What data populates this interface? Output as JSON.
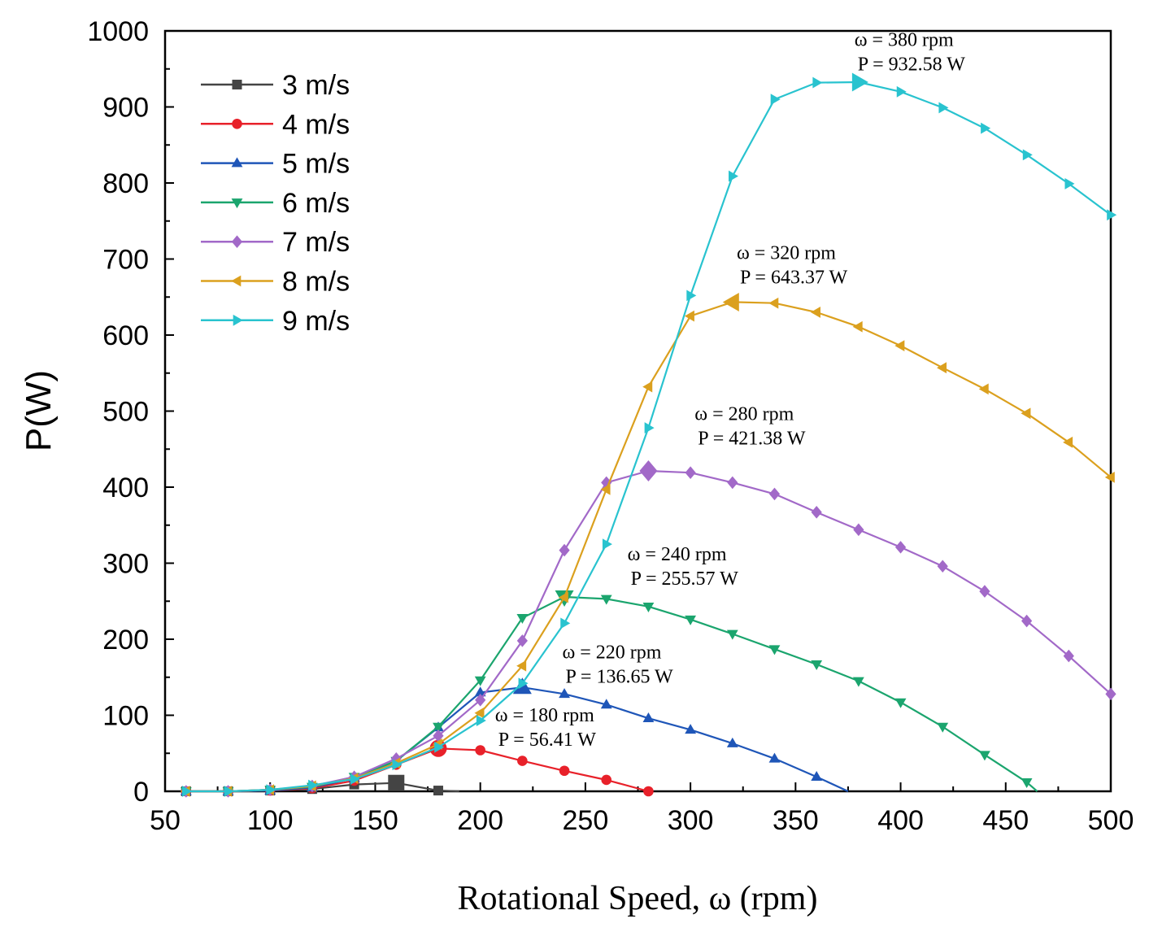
{
  "chart_data": {
    "type": "line",
    "title": "",
    "xlabel": "Rotational Speed, ω (rpm)",
    "ylabel": "P(W)",
    "xlim": [
      50,
      500
    ],
    "ylim": [
      0,
      1000
    ],
    "xticks": [
      50,
      100,
      150,
      200,
      250,
      300,
      350,
      400,
      450,
      500
    ],
    "yticks": [
      0,
      100,
      200,
      300,
      400,
      500,
      600,
      700,
      800,
      900,
      1000
    ],
    "grid": false,
    "legend_position": "top-left",
    "series": [
      {
        "name": "3 m/s",
        "color": "#444444",
        "marker": "square",
        "points": [
          [
            60,
            0
          ],
          [
            80,
            0
          ],
          [
            100,
            1
          ],
          [
            120,
            3
          ],
          [
            140,
            9
          ],
          [
            160,
            11
          ],
          [
            180,
            1
          ],
          [
            190,
            0
          ]
        ],
        "peak": [
          160,
          11
        ]
      },
      {
        "name": "4 m/s",
        "color": "#e8212a",
        "marker": "circle",
        "points": [
          [
            60,
            0
          ],
          [
            80,
            0
          ],
          [
            100,
            1
          ],
          [
            120,
            4
          ],
          [
            140,
            14
          ],
          [
            160,
            35
          ],
          [
            180,
            56.41
          ],
          [
            200,
            54
          ],
          [
            220,
            40
          ],
          [
            240,
            27
          ],
          [
            260,
            15
          ],
          [
            280,
            0
          ]
        ],
        "peak": [
          180,
          56.41
        ]
      },
      {
        "name": "5 m/s",
        "color": "#1f56b8",
        "marker": "triangle-up",
        "points": [
          [
            60,
            0
          ],
          [
            80,
            0
          ],
          [
            100,
            1
          ],
          [
            120,
            5
          ],
          [
            140,
            17
          ],
          [
            160,
            40
          ],
          [
            180,
            84
          ],
          [
            200,
            130
          ],
          [
            220,
            136.65
          ],
          [
            240,
            128
          ],
          [
            260,
            114
          ],
          [
            280,
            96
          ],
          [
            300,
            81
          ],
          [
            320,
            63
          ],
          [
            340,
            43
          ],
          [
            360,
            19
          ],
          [
            375,
            0
          ]
        ],
        "peak": [
          220,
          136.65
        ]
      },
      {
        "name": "6 m/s",
        "color": "#1ba56e",
        "marker": "triangle-down",
        "points": [
          [
            60,
            0
          ],
          [
            80,
            0
          ],
          [
            100,
            2
          ],
          [
            120,
            6
          ],
          [
            140,
            19
          ],
          [
            160,
            40
          ],
          [
            180,
            85
          ],
          [
            200,
            146
          ],
          [
            220,
            228
          ],
          [
            240,
            255.57
          ],
          [
            260,
            253
          ],
          [
            280,
            243
          ],
          [
            300,
            226
          ],
          [
            320,
            207
          ],
          [
            340,
            187
          ],
          [
            360,
            167
          ],
          [
            380,
            145
          ],
          [
            400,
            117
          ],
          [
            420,
            85
          ],
          [
            440,
            48
          ],
          [
            460,
            12
          ],
          [
            465,
            0
          ]
        ],
        "peak": [
          240,
          255.57
        ]
      },
      {
        "name": "7 m/s",
        "color": "#a269c8",
        "marker": "diamond",
        "points": [
          [
            60,
            0
          ],
          [
            80,
            0
          ],
          [
            100,
            2
          ],
          [
            120,
            7
          ],
          [
            140,
            19
          ],
          [
            160,
            43
          ],
          [
            180,
            73
          ],
          [
            200,
            120
          ],
          [
            220,
            198
          ],
          [
            240,
            317
          ],
          [
            260,
            406
          ],
          [
            280,
            421.38
          ],
          [
            300,
            419
          ],
          [
            320,
            406
          ],
          [
            340,
            391
          ],
          [
            360,
            367
          ],
          [
            380,
            344
          ],
          [
            400,
            321
          ],
          [
            420,
            296
          ],
          [
            440,
            263
          ],
          [
            460,
            224
          ],
          [
            480,
            178
          ],
          [
            500,
            128
          ]
        ],
        "peak": [
          280,
          421.38
        ]
      },
      {
        "name": "8 m/s",
        "color": "#dba01e",
        "marker": "triangle-left",
        "points": [
          [
            60,
            0
          ],
          [
            80,
            0
          ],
          [
            100,
            2
          ],
          [
            120,
            7
          ],
          [
            140,
            17
          ],
          [
            160,
            37
          ],
          [
            180,
            62
          ],
          [
            200,
            103
          ],
          [
            220,
            165
          ],
          [
            240,
            255
          ],
          [
            260,
            397
          ],
          [
            280,
            532
          ],
          [
            300,
            625
          ],
          [
            320,
            643.37
          ],
          [
            340,
            642
          ],
          [
            360,
            630
          ],
          [
            380,
            611
          ],
          [
            400,
            586
          ],
          [
            420,
            557
          ],
          [
            440,
            529
          ],
          [
            460,
            497
          ],
          [
            480,
            459
          ],
          [
            500,
            413
          ]
        ],
        "peak": [
          320,
          643.37
        ]
      },
      {
        "name": "9 m/s",
        "color": "#29c3cf",
        "marker": "triangle-right",
        "points": [
          [
            60,
            0
          ],
          [
            80,
            0
          ],
          [
            100,
            2
          ],
          [
            120,
            8
          ],
          [
            140,
            16
          ],
          [
            160,
            35
          ],
          [
            180,
            58
          ],
          [
            200,
            93
          ],
          [
            220,
            142
          ],
          [
            240,
            221
          ],
          [
            260,
            325
          ],
          [
            280,
            478
          ],
          [
            300,
            652
          ],
          [
            320,
            809
          ],
          [
            340,
            910
          ],
          [
            360,
            932
          ],
          [
            380,
            932.58
          ],
          [
            400,
            920
          ],
          [
            420,
            899
          ],
          [
            440,
            872
          ],
          [
            460,
            837
          ],
          [
            480,
            799
          ],
          [
            500,
            758
          ]
        ],
        "peak": [
          380,
          932.58
        ]
      }
    ],
    "annotations": [
      {
        "rpm_text": "ω = 380 rpm",
        "power_text": "P = 932.58 W",
        "anchor": [
          378,
          980
        ]
      },
      {
        "rpm_text": "ω = 320 rpm",
        "power_text": "P = 643.37 W",
        "anchor": [
          322,
          700
        ]
      },
      {
        "rpm_text": "ω = 280 rpm",
        "power_text": "P = 421.38 W",
        "anchor": [
          302,
          488
        ]
      },
      {
        "rpm_text": "ω = 240 rpm",
        "power_text": "P = 255.57 W",
        "anchor": [
          270,
          304
        ]
      },
      {
        "rpm_text": "ω = 220 rpm",
        "power_text": "P = 136.65 W",
        "anchor": [
          239,
          175
        ]
      },
      {
        "rpm_text": "ω = 180 rpm",
        "power_text": "P = 56.41 W",
        "anchor": [
          207,
          92
        ]
      }
    ]
  }
}
